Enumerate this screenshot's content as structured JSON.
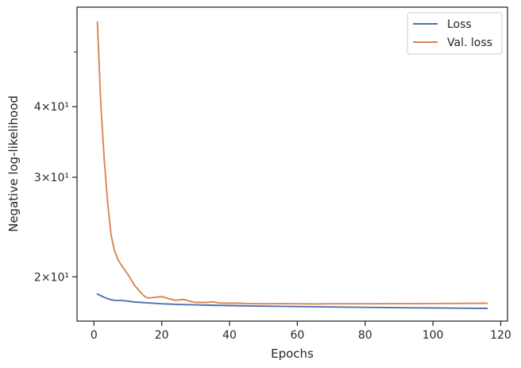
{
  "chart_data": {
    "type": "line",
    "title": "",
    "xlabel": "Epochs",
    "ylabel": "Negative log-likelihood",
    "xscale": "linear",
    "yscale": "log",
    "xlim": [
      -5,
      122
    ],
    "ylim": [
      16.7,
      60
    ],
    "grid": false,
    "legend_position": "top-right",
    "x_ticks": [
      0,
      20,
      40,
      60,
      80,
      100,
      120
    ],
    "x_tick_labels": [
      "0",
      "20",
      "40",
      "60",
      "80",
      "100",
      "120"
    ],
    "y_major_ticks": [
      20,
      30,
      40
    ],
    "y_tick_labels": [
      "2×10¹",
      "3×10¹",
      "4×10¹"
    ],
    "y_minor_ticks": [
      50
    ],
    "series": [
      {
        "name": "Loss",
        "color": "#4c72b0",
        "x": [
          1,
          3,
          5,
          6,
          8,
          10,
          12,
          15,
          20,
          25,
          30,
          40,
          50,
          60,
          70,
          80,
          90,
          100,
          110,
          116
        ],
        "y": [
          18.65,
          18.4,
          18.22,
          18.17,
          18.16,
          18.12,
          18.05,
          18.0,
          17.92,
          17.87,
          17.84,
          17.79,
          17.75,
          17.72,
          17.69,
          17.66,
          17.64,
          17.62,
          17.6,
          17.59
        ]
      },
      {
        "name": "Val. loss",
        "color": "#dd8452",
        "x": [
          1,
          2,
          3,
          4,
          5,
          6,
          7,
          8,
          10,
          12,
          14,
          15,
          16,
          18,
          20,
          22,
          24,
          26,
          27,
          28,
          30,
          33,
          35,
          37,
          40,
          43,
          45,
          50,
          55,
          60,
          65,
          70,
          80,
          90,
          100,
          110,
          116
        ],
        "y": [
          56.5,
          40.5,
          32.5,
          27.2,
          23.8,
          22.3,
          21.5,
          21.0,
          20.2,
          19.3,
          18.7,
          18.45,
          18.35,
          18.4,
          18.45,
          18.3,
          18.18,
          18.23,
          18.22,
          18.12,
          18.02,
          18.02,
          18.06,
          17.98,
          17.96,
          17.96,
          17.94,
          17.92,
          17.93,
          17.92,
          17.91,
          17.92,
          17.92,
          17.93,
          17.94,
          17.95,
          17.96
        ]
      }
    ]
  }
}
